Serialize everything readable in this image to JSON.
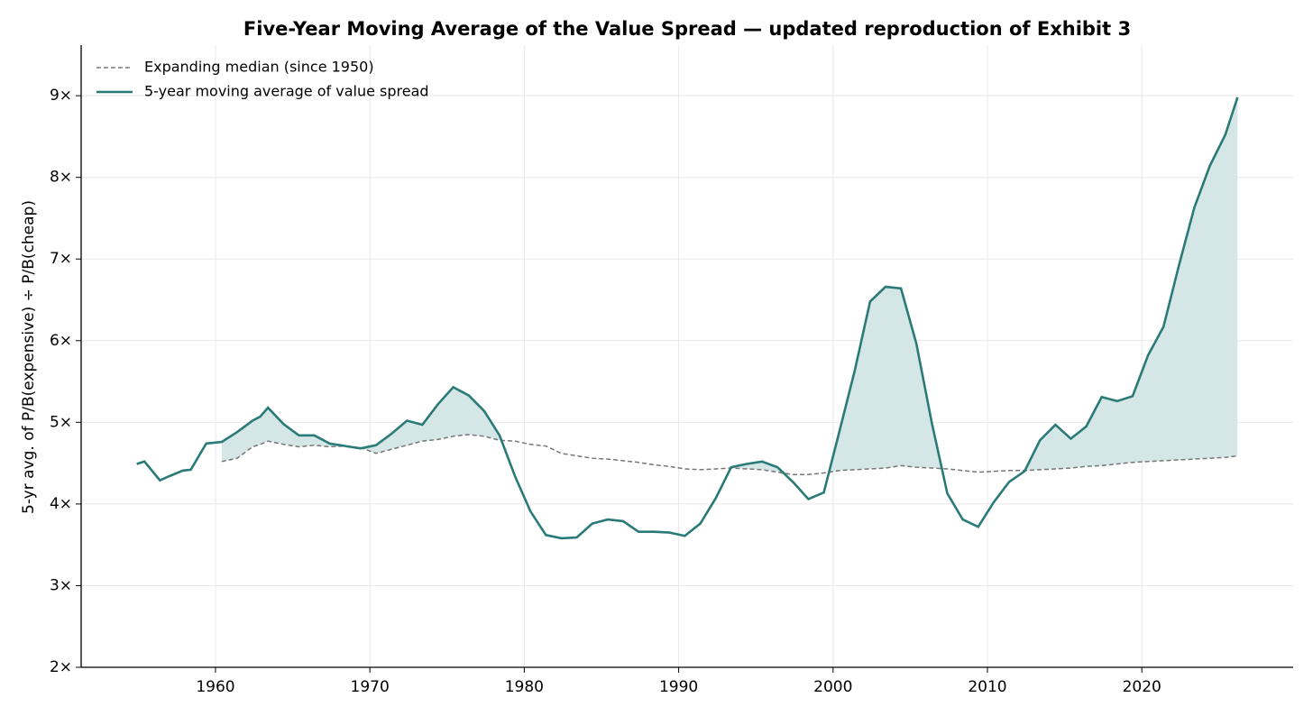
{
  "chart_data": {
    "type": "line",
    "title": "Five-Year Moving Average of the Value Spread  —  updated reproduction of Exhibit 3",
    "y_label": "5-yr avg. of P/B(expensive) ÷ P/B(cheap)",
    "x": [
      1954.9,
      1955.4,
      1956.4,
      1957.0,
      1957.9,
      1958.4,
      1959.4,
      1960.4,
      1961.4,
      1962.4,
      1962.9,
      1963.4,
      1964.4,
      1965.4,
      1966.4,
      1967.4,
      1968.4,
      1969.4,
      1970.4,
      1971.4,
      1972.4,
      1973.4,
      1974.4,
      1975.4,
      1976.4,
      1977.4,
      1978.4,
      1979.4,
      1980.4,
      1981.4,
      1982.4,
      1983.4,
      1984.4,
      1985.4,
      1986.4,
      1987.4,
      1988.4,
      1989.4,
      1990.4,
      1991.4,
      1992.4,
      1993.4,
      1994.4,
      1995.4,
      1996.4,
      1997.4,
      1998.4,
      1999.4,
      2000.4,
      2001.4,
      2002.4,
      2003.4,
      2004.4,
      2005.4,
      2006.4,
      2007.4,
      2008.4,
      2009.4,
      2010.4,
      2011.4,
      2012.4,
      2013.4,
      2014.4,
      2015.4,
      2016.4,
      2017.4,
      2018.4,
      2019.4,
      2020.4,
      2021.4,
      2022.4,
      2023.4,
      2024.4,
      2025.4,
      2026.2
    ],
    "series": [
      {
        "name": "Expanding median (since 1950)",
        "color": "#777777",
        "dashed": true,
        "values": [
          null,
          null,
          null,
          null,
          null,
          null,
          null,
          4.52,
          4.56,
          4.7,
          4.73,
          4.77,
          4.73,
          4.7,
          4.72,
          4.7,
          4.71,
          4.69,
          4.62,
          4.67,
          4.72,
          4.77,
          4.79,
          4.83,
          4.85,
          4.83,
          4.78,
          4.77,
          4.73,
          4.71,
          4.62,
          4.59,
          4.56,
          4.55,
          4.53,
          4.51,
          4.48,
          4.46,
          4.43,
          4.42,
          4.43,
          4.44,
          4.43,
          4.42,
          4.39,
          4.36,
          4.36,
          4.38,
          4.41,
          4.42,
          4.43,
          4.44,
          4.47,
          4.45,
          4.44,
          4.43,
          4.41,
          4.39,
          4.4,
          4.41,
          4.41,
          4.42,
          4.43,
          4.44,
          4.46,
          4.47,
          4.49,
          4.51,
          4.52,
          4.53,
          4.54,
          4.55,
          4.56,
          4.57,
          4.59
        ]
      },
      {
        "name": "5-year moving average of value spread",
        "color": "#2a7a78",
        "dashed": false,
        "values": [
          4.49,
          4.52,
          4.29,
          4.34,
          4.41,
          4.42,
          4.74,
          4.76,
          4.88,
          5.02,
          5.07,
          5.18,
          4.98,
          4.84,
          4.84,
          4.74,
          4.71,
          4.68,
          4.72,
          4.86,
          5.02,
          4.97,
          5.22,
          5.43,
          5.33,
          5.14,
          4.84,
          4.34,
          3.91,
          3.62,
          3.58,
          3.59,
          3.76,
          3.81,
          3.79,
          3.66,
          3.66,
          3.65,
          3.61,
          3.76,
          4.07,
          4.45,
          4.49,
          4.52,
          4.45,
          4.27,
          4.06,
          4.14,
          4.88,
          5.63,
          6.48,
          6.66,
          6.64,
          5.96,
          4.99,
          4.13,
          3.81,
          3.72,
          4.02,
          4.27,
          4.4,
          4.78,
          4.97,
          4.8,
          4.95,
          5.31,
          5.26,
          5.32,
          5.82,
          6.17,
          6.92,
          7.63,
          8.14,
          8.52,
          8.98
        ]
      }
    ],
    "fill_color": "#d5e6e6",
    "xlim": [
      1951.3,
      2029.8
    ],
    "ylim": [
      2,
      9.62
    ],
    "xticks": [
      1960,
      1970,
      1980,
      1990,
      2000,
      2010,
      2020
    ],
    "yticks": [
      {
        "value": 2,
        "label": "2×"
      },
      {
        "value": 3,
        "label": "3×"
      },
      {
        "value": 4,
        "label": "4×"
      },
      {
        "value": 5,
        "label": "5×"
      },
      {
        "value": 6,
        "label": "6×"
      },
      {
        "value": 7,
        "label": "7×"
      },
      {
        "value": 8,
        "label": "8×"
      },
      {
        "value": 9,
        "label": "9×"
      }
    ],
    "grid": true,
    "legend": "upper left"
  }
}
